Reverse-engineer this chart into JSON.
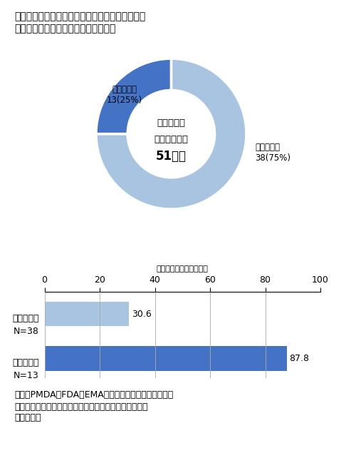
{
  "title_line1": "図９　買収・提携品の日本権利取得と欧米承認時",
  "title_line2": "　　　期の品目とラグ期間（中央値）",
  "donut": {
    "values": [
      75,
      25
    ],
    "colors": [
      "#a8c4e0",
      "#4472c4"
    ],
    "label_before": "欧米承認前\n38(75%)",
    "label_after": "欧米承認後\n13(25%)",
    "center_text_line1": "買収・提携",
    "center_text_line2": "日本権利取得",
    "center_text_line3": "51品目"
  },
  "bar": {
    "categories_top": "欧米承認前",
    "categories_top2": "N=38",
    "categories_bot": "欧米承認後",
    "categories_bot2": "N=13",
    "values": [
      30.6,
      87.8
    ],
    "colors": [
      "#a8c4e0",
      "#4472c4"
    ],
    "xlim": [
      0,
      100
    ],
    "xticks": [
      0,
      20,
      40,
      60,
      80,
      100
    ],
    "xlabel": "ラグ期間（中央値：月）"
  },
  "footnote_line1": "出所：PMDA、FDA、EMAの各公開情報、「明日の新薬",
  "footnote_line2": "　（テクノミック制作）」をもとに医薬産業政策研究所",
  "footnote_line3": "　にて作成"
}
